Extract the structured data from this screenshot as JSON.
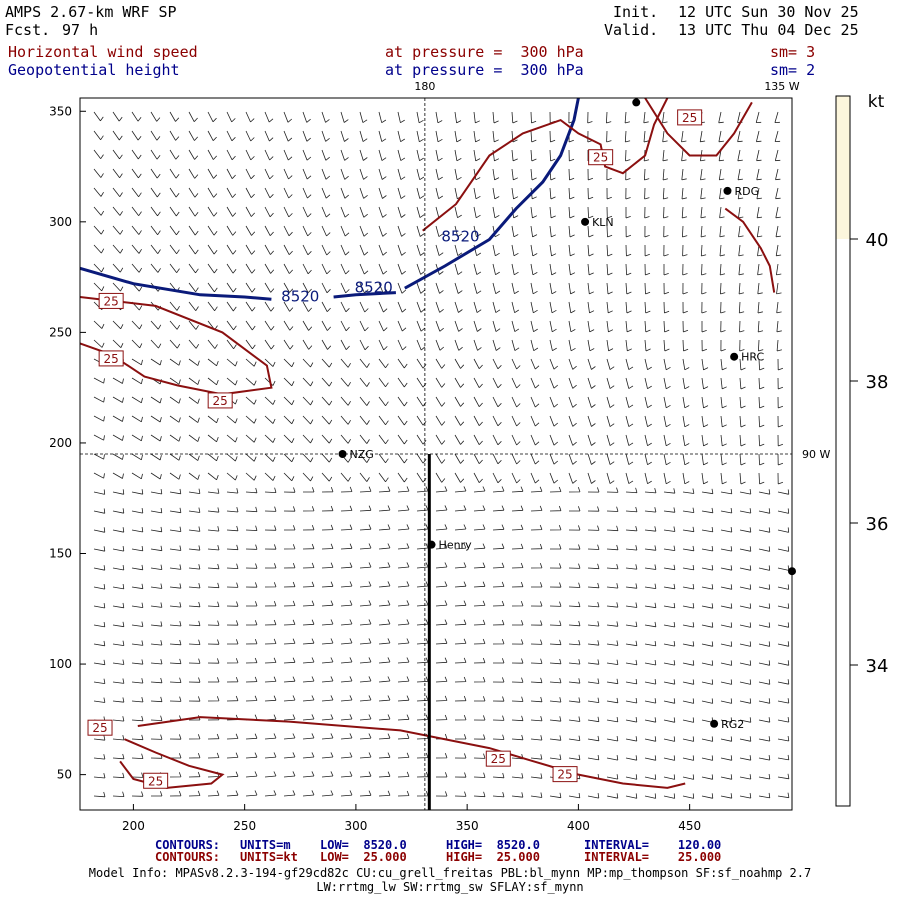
{
  "header": {
    "model": "AMPS 2.67-km WRF SP",
    "forecast_label": "Fcst.",
    "forecast_value": "97 h",
    "init_label": "Init.",
    "init_value": "12 UTC Sun 30 Nov 25",
    "valid_label": "Valid.",
    "valid_value": "13 UTC Thu 04 Dec 25",
    "field1": {
      "name": "Horizontal wind speed",
      "level": "at pressure =  300 hPa",
      "sm": "sm= 3"
    },
    "field2": {
      "name": "Geopotential height",
      "level": "at pressure =  300 hPa",
      "sm": "sm= 2"
    }
  },
  "map": {
    "x_ticks": [
      200,
      250,
      300,
      350,
      400,
      450
    ],
    "y_ticks": [
      50,
      100,
      150,
      200,
      250,
      300,
      350
    ],
    "x_range": [
      176,
      496
    ],
    "y_range": [
      34,
      356
    ],
    "meridian_180": {
      "label": "180",
      "x": 331
    },
    "meridian_135w": {
      "label": "135 W",
      "x": 496
    },
    "meridian_90w": {
      "label": "90 W",
      "y": 195
    },
    "section_line": {
      "x": 333,
      "y_from": 34,
      "y_to": 195
    },
    "stations": [
      {
        "label": "NZG",
        "x": 294,
        "y": 195
      },
      {
        "label": "Henry",
        "x": 334,
        "y": 154
      },
      {
        "label": "KLN",
        "x": 403,
        "y": 300
      },
      {
        "label": "RDG",
        "x": 467,
        "y": 314
      },
      {
        "label": "HRC",
        "x": 470,
        "y": 239
      },
      {
        "label": "RG2",
        "x": 461,
        "y": 73
      },
      {
        "label": "",
        "x": 496,
        "y": 142
      },
      {
        "label": "",
        "x": 426,
        "y": 354
      }
    ],
    "height_contour_label": "8520",
    "speed_contour_label": "25"
  },
  "colorbar": {
    "unit": "kt",
    "labels": [
      "40",
      "38",
      "36",
      "34"
    ],
    "fill_color": "#fcf6dc"
  },
  "footer": {
    "row1": {
      "label": "CONTOURS:",
      "units": "UNITS=m",
      "low": "LOW=  8520.0",
      "high": "HIGH=  8520.0",
      "interval": "INTERVAL=    120.00"
    },
    "row2": {
      "label": "CONTOURS:",
      "units": "UNITS=kt",
      "low": "LOW=  25.000",
      "high": "HIGH=  25.000",
      "interval": "INTERVAL=    25.000"
    },
    "info1": "Model Info: MPASv8.2.3-194-gf29cd82c CU:cu_grell_freitas PBL:bl_mynn MP:mp_thompson SF:sf_noahmp 2.7",
    "info2": "LW:rrtmg_lw SW:rrtmg_sw SFLAY:sf_mynn"
  },
  "colors": {
    "height_contour": "#0a1a7a",
    "speed_contour": "#8b1010",
    "footer_row1": "#00008b",
    "footer_row2": "#8b0000"
  }
}
